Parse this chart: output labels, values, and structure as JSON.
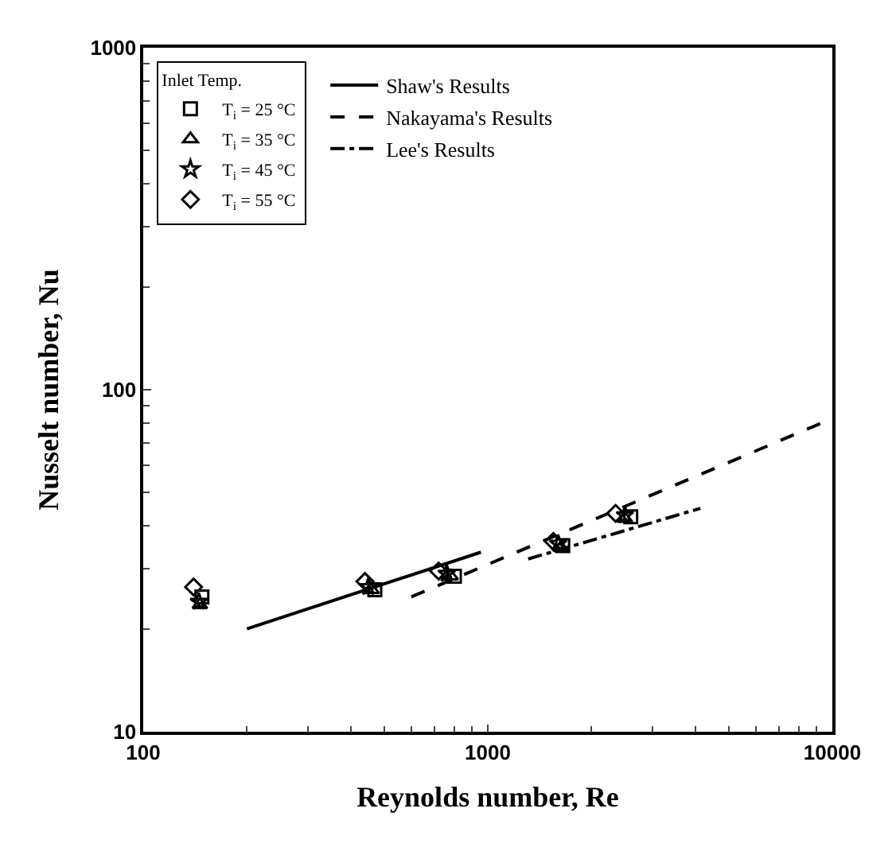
{
  "chart_data": {
    "type": "scatter",
    "xlabel": "Reynolds number, Re",
    "ylabel": "Nusselt number, Nu",
    "legend_title": "Inlet Temp.",
    "log": "xy",
    "legend": "top left",
    "xlim": [
      100,
      10000
    ],
    "xticks": [
      100,
      1000,
      10000
    ],
    "ylim": [
      10,
      1000
    ],
    "yticks": [
      10,
      100,
      1000
    ],
    "series": [
      {
        "name": "T$_{i}$ = 25 °C",
        "color": "#000000",
        "marker": "square",
        "x": [
          148,
          470,
          800,
          1650,
          2600
        ],
        "values": [
          24.8,
          26,
          28.5,
          35,
          42.5
        ]
      },
      {
        "name": "T$_{i}$ = 35 °C",
        "color": "#000000",
        "marker": "triangle",
        "x": [
          146,
          460,
          780,
          1630,
          2500
        ],
        "values": [
          23.5,
          26,
          28.5,
          34.5,
          42
        ]
      },
      {
        "name": "T$_{i}$ = 45 °C",
        "color": "#000000",
        "marker": "star",
        "x": [
          145,
          450,
          760,
          1600,
          2500
        ],
        "values": [
          24,
          26.5,
          29,
          35.5,
          43
        ]
      },
      {
        "name": "T$_{i}$ = 55 °C",
        "color": "#000000",
        "marker": "diamond",
        "x": [
          140,
          440,
          720,
          1550,
          2350
        ],
        "values": [
          26.5,
          27.5,
          29.5,
          36,
          43.5
        ]
      },
      {
        "name": "Shaw's Results",
        "type": "line",
        "color": "#000000",
        "marker": "none",
        "line_style": "solid",
        "x": [
          200,
          955
        ],
        "values": [
          20,
          33.5
        ]
      },
      {
        "name": "Nakayama's Results",
        "type": "line",
        "color": "#000000",
        "marker": "none",
        "line_style": "dashed",
        "x": [
          600,
          10000
        ],
        "values": [
          24.8,
          82.4
        ]
      },
      {
        "name": "Lee's Results",
        "type": "line",
        "color": "#000000",
        "marker": "none",
        "line_style": "dashdot",
        "x": [
          1310,
          4140
        ],
        "values": [
          32,
          45
        ]
      }
    ]
  }
}
